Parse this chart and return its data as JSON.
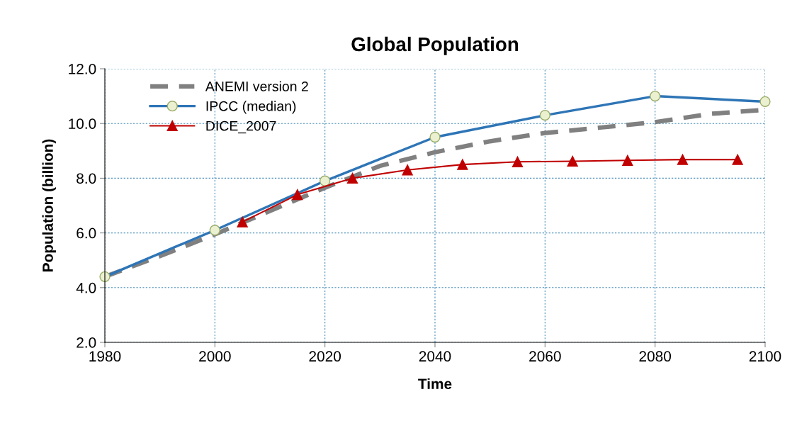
{
  "chart_data": {
    "type": "line",
    "title": "Global Population",
    "xlabel": "Time",
    "ylabel": "Population (billion)",
    "xlim": [
      1980,
      2100
    ],
    "xticks": [
      1980,
      2000,
      2020,
      2040,
      2060,
      2080,
      2100
    ],
    "ylim": [
      2.0,
      12.0
    ],
    "yticks": [
      {
        "value": 2,
        "label": "2.0"
      },
      {
        "value": 4,
        "label": "4.0"
      },
      {
        "value": 6,
        "label": "6.0"
      },
      {
        "value": 8,
        "label": "8.0"
      },
      {
        "value": 10,
        "label": "10.0"
      },
      {
        "value": 12,
        "label": "12.0"
      }
    ],
    "grid": true,
    "legend": "top left",
    "series": [
      {
        "name": "ANEMI version 2",
        "color": "#808080",
        "line_style": "dashed",
        "marker": "none",
        "x": [
          1980,
          1990,
          2000,
          2010,
          2020,
          2030,
          2040,
          2050,
          2060,
          2070,
          2080,
          2090,
          2100
        ],
        "values": [
          4.4,
          5.15,
          5.95,
          6.8,
          7.65,
          8.45,
          8.95,
          9.35,
          9.65,
          9.85,
          10.05,
          10.35,
          10.5
        ]
      },
      {
        "name": "IPCC (median)",
        "color": "#2e75b6",
        "line_style": "solid",
        "marker": "circle",
        "x": [
          1980,
          2000,
          2020,
          2040,
          2060,
          2080,
          2100
        ],
        "values": [
          4.4,
          6.1,
          7.9,
          9.5,
          10.3,
          11.0,
          10.8
        ]
      },
      {
        "name": "DICE_2007",
        "color": "#c00000",
        "line_style": "solid",
        "marker": "triangle",
        "x": [
          2005,
          2015,
          2025,
          2035,
          2045,
          2055,
          2065,
          2075,
          2085,
          2095
        ],
        "values": [
          6.4,
          7.4,
          8.0,
          8.3,
          8.5,
          8.6,
          8.62,
          8.65,
          8.68,
          8.68
        ]
      }
    ]
  }
}
